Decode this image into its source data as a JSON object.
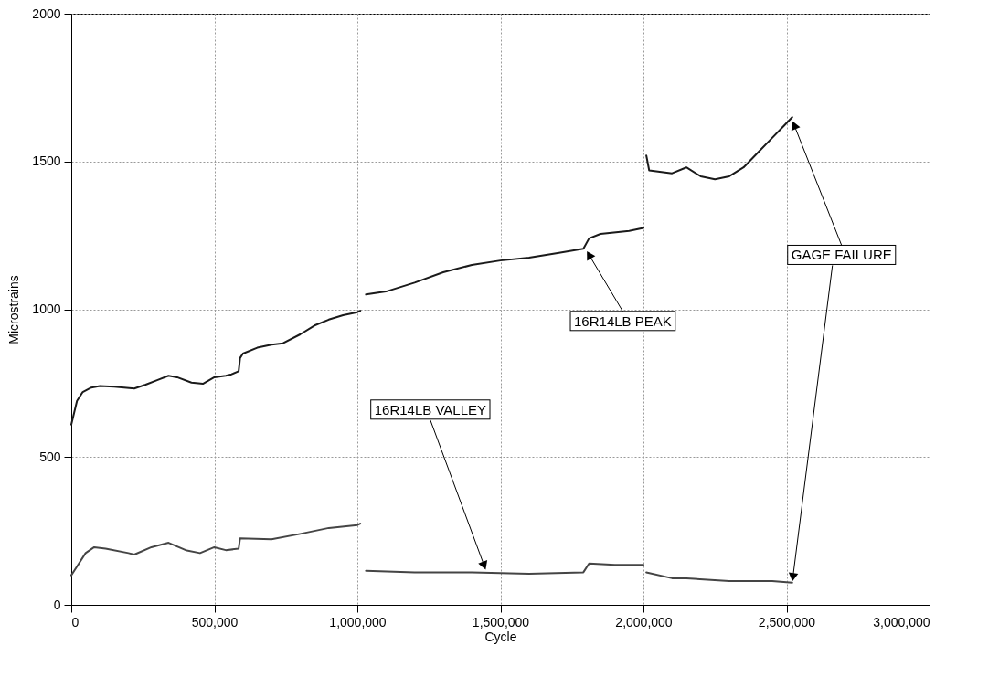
{
  "chart_data": {
    "type": "line",
    "xlabel": "Cycle",
    "ylabel": "Microstrains",
    "xlim": [
      0,
      3000000
    ],
    "xticks": [
      0,
      {
        "value": 500000,
        "label": "500,000"
      },
      {
        "value": 1000000,
        "label": "1,000,000"
      },
      {
        "value": 1500000,
        "label": "1,500,000"
      },
      {
        "value": 2000000,
        "label": "2,000,000"
      },
      {
        "value": 2500000,
        "label": "2,500,000"
      },
      {
        "value": 3000000,
        "label": "3,000,000"
      }
    ],
    "ylim": [
      0,
      2000
    ],
    "yticks": [
      0,
      500,
      1000,
      1500,
      2000
    ],
    "grid": true,
    "line_style": "solid",
    "series": [
      {
        "color": "#1a1a1a",
        "x": [
          0,
          10000,
          20000,
          40000,
          70000,
          100000,
          150000,
          220000,
          260000,
          300000,
          340000,
          370000,
          420000,
          460000,
          500000,
          540000,
          560000,
          585000,
          590000,
          600000,
          650000,
          700000,
          740000,
          800000,
          850000,
          900000,
          950000,
          1000000,
          1010000,
          1020000,
          1030000,
          1100000,
          1200000,
          1300000,
          1400000,
          1500000,
          1600000,
          1700000,
          1790000,
          1810000,
          1850000,
          1950000,
          2000000,
          2005000,
          2010000,
          2020000,
          2100000,
          2150000,
          2200000,
          2250000,
          2300000,
          2350000,
          2400000,
          2450000,
          2490000,
          2520000
        ],
        "values": [
          610,
          650,
          690,
          720,
          735,
          740,
          738,
          732,
          745,
          760,
          775,
          770,
          752,
          748,
          770,
          775,
          780,
          790,
          835,
          850,
          870,
          880,
          885,
          915,
          945,
          965,
          980,
          990,
          995,
          null,
          1050,
          1060,
          1090,
          1125,
          1150,
          1165,
          1175,
          1190,
          1205,
          1240,
          1255,
          1265,
          1275,
          null,
          1520,
          1470,
          1460,
          1480,
          1450,
          1440,
          1450,
          1480,
          1530,
          1580,
          1620,
          1650
        ]
      },
      {
        "color": "#454545",
        "x": [
          0,
          20000,
          50000,
          80000,
          120000,
          200000,
          220000,
          280000,
          340000,
          400000,
          450000,
          500000,
          540000,
          585000,
          590000,
          700000,
          800000,
          900000,
          1000000,
          1010000,
          1020000,
          1030000,
          1200000,
          1400000,
          1600000,
          1790000,
          1810000,
          1900000,
          2000000,
          2005000,
          2010000,
          2100000,
          2150000,
          2300000,
          2450000,
          2520000
        ],
        "values": [
          100,
          130,
          175,
          195,
          190,
          175,
          170,
          195,
          210,
          185,
          175,
          195,
          185,
          190,
          225,
          222,
          240,
          260,
          270,
          275,
          null,
          115,
          110,
          110,
          105,
          110,
          140,
          135,
          135,
          null,
          110,
          90,
          90,
          80,
          80,
          75
        ]
      }
    ],
    "annotations": [
      {
        "text": "16R14LB PEAK",
        "x": 1800000,
        "y": 1200
      },
      {
        "text": "16R14LB VALLEY",
        "x": 1450000,
        "y": 115
      },
      {
        "text": "GAGE FAILURE",
        "x": 2520000,
        "y": 1640
      }
    ]
  }
}
